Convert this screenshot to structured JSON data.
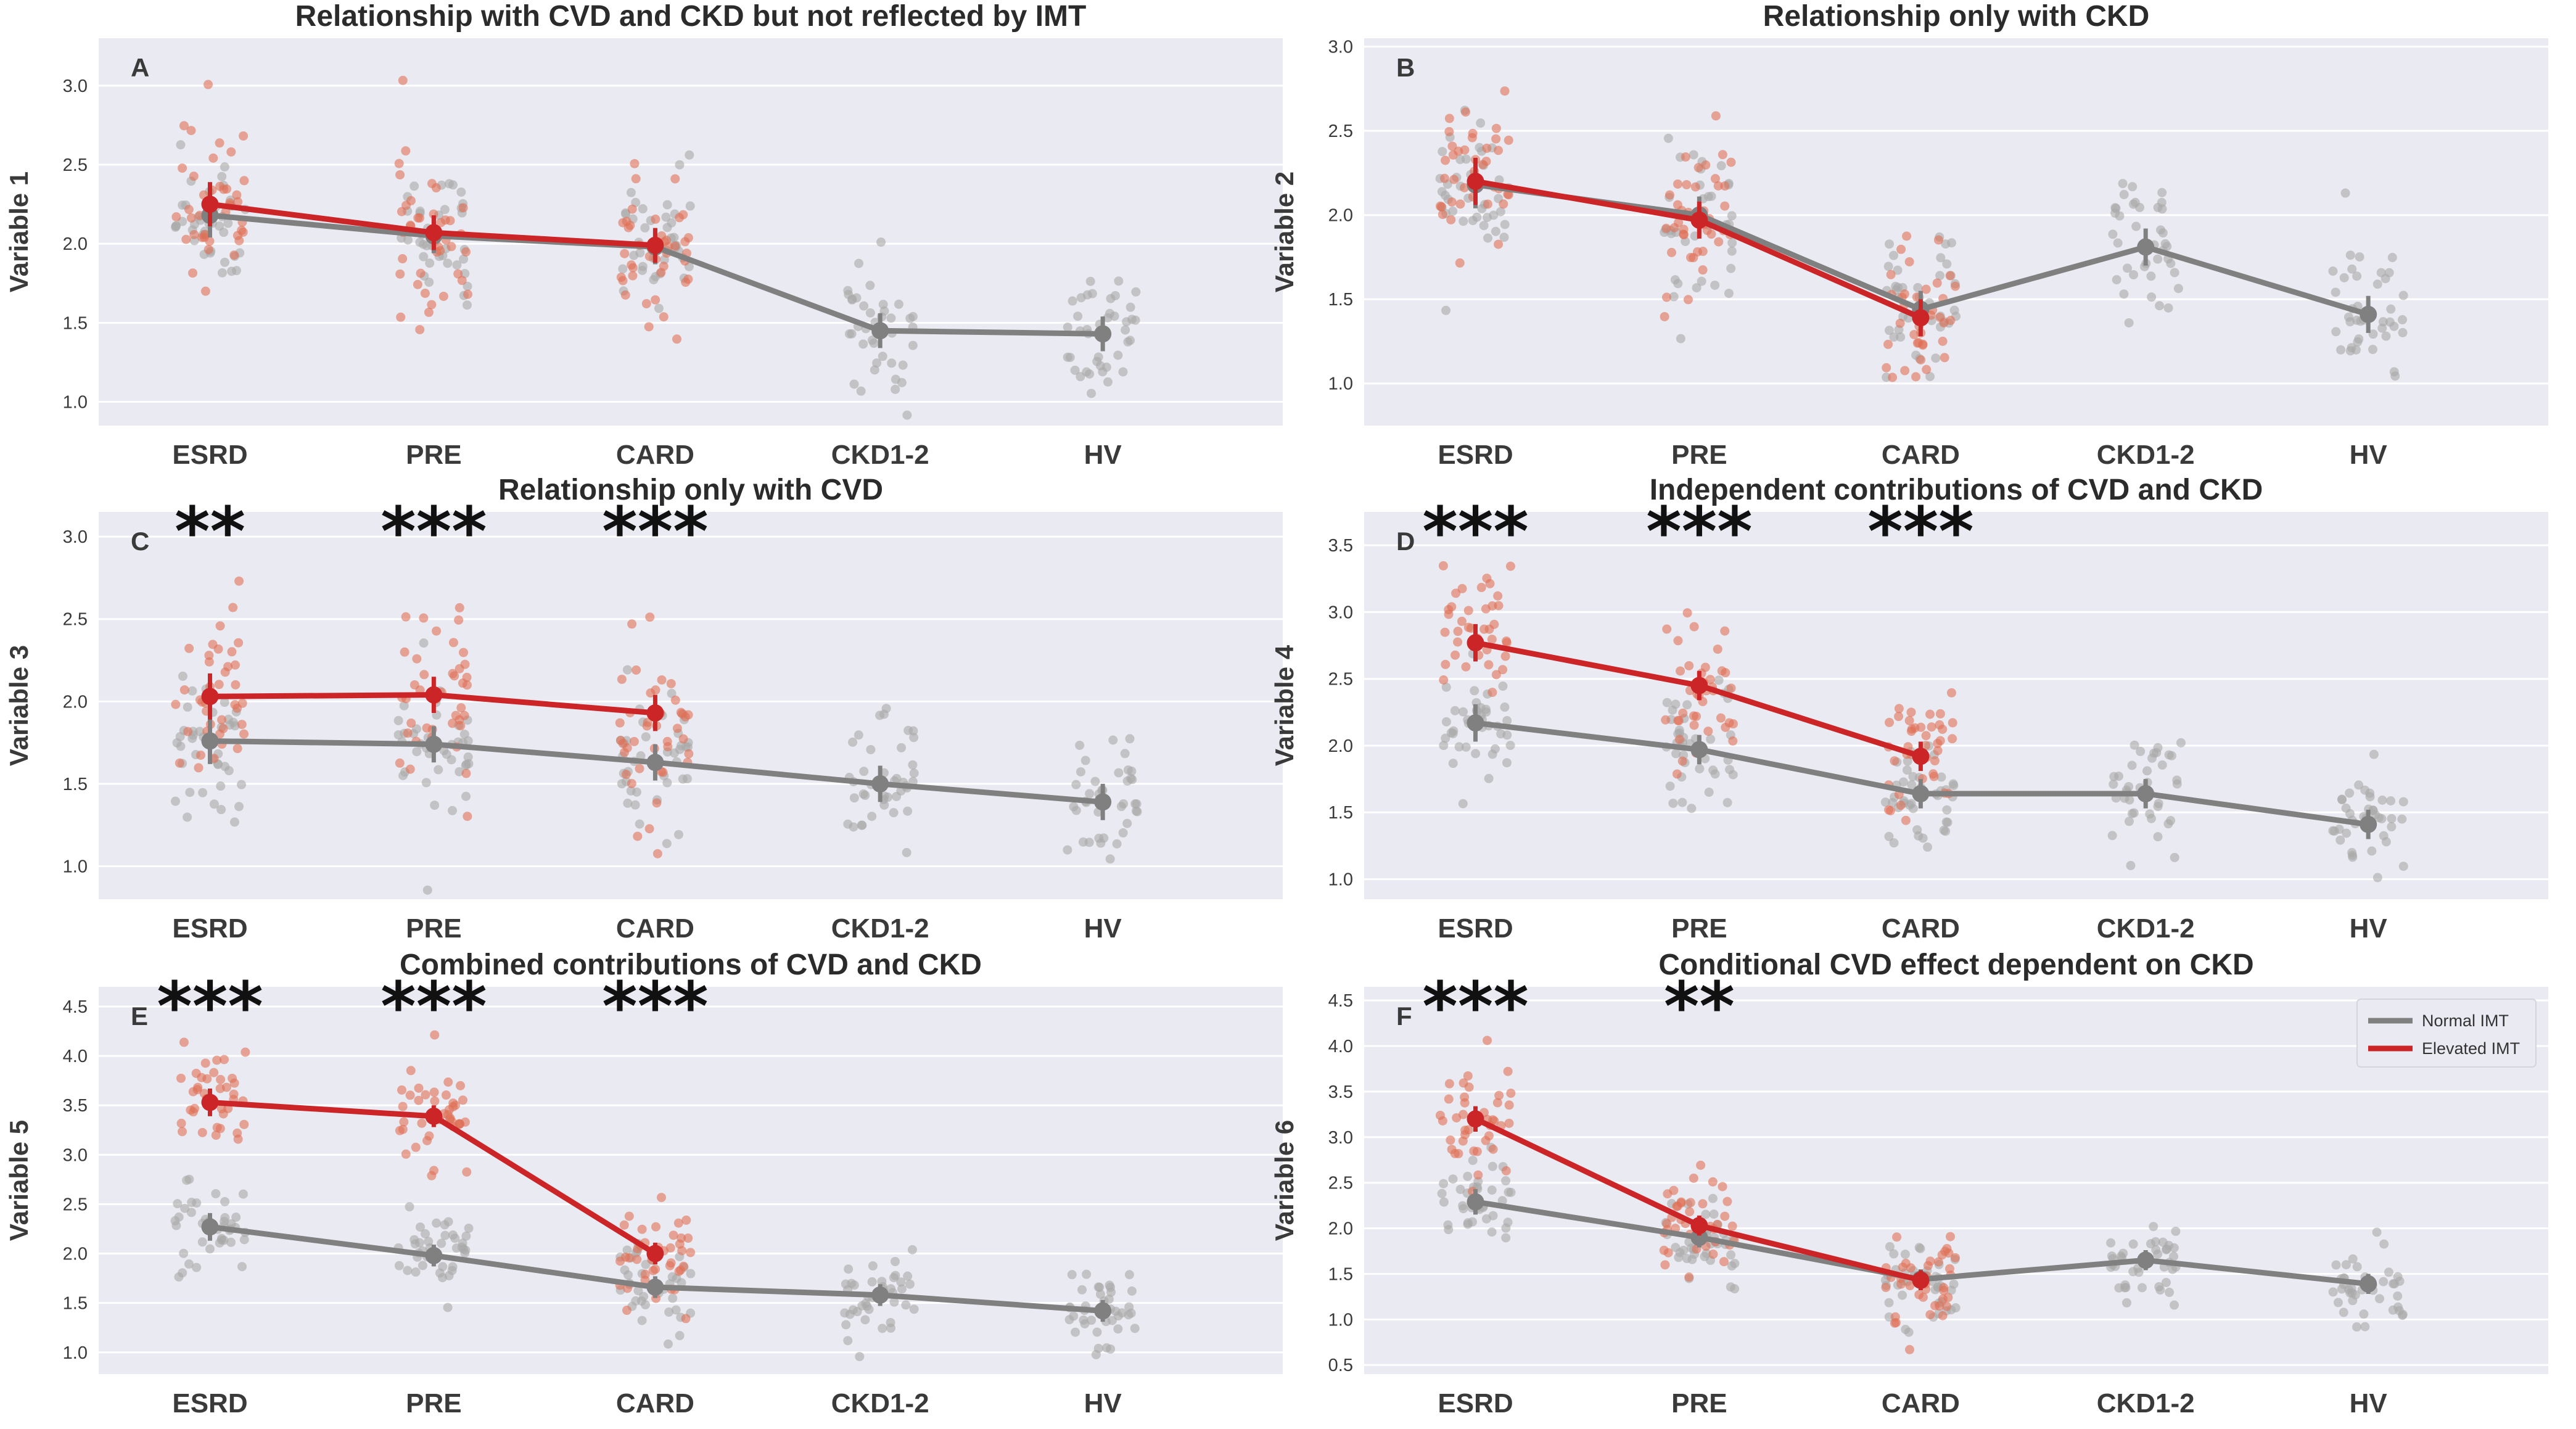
{
  "colors": {
    "normal": "#808080",
    "elevated": "#cc2528",
    "elevated_pts": "#e07055",
    "normal_pts": "#a8a8a8",
    "bg": "#eaeaf2"
  },
  "legend": {
    "normal": "Normal IMT",
    "elevated": "Elevated IMT"
  },
  "chart_data": [
    {
      "type": "line",
      "panel": "A",
      "title": "Relationship with CVD and CKD but not reflected by IMT",
      "ylabel": "Variable 1",
      "categories": [
        "ESRD",
        "PRE",
        "CARD",
        "CKD1-2",
        "HV"
      ],
      "ylim": [
        0.85,
        3.3
      ],
      "yticks": [
        1.0,
        1.5,
        2.0,
        2.5,
        3.0
      ],
      "series": [
        {
          "name": "Normal IMT",
          "values": [
            2.18,
            2.05,
            1.98,
            1.45,
            1.43
          ]
        },
        {
          "name": "Elevated IMT",
          "values": [
            2.25,
            2.07,
            1.99,
            null,
            null
          ]
        }
      ],
      "stars": [
        "",
        "",
        "",
        "",
        ""
      ]
    },
    {
      "type": "line",
      "panel": "B",
      "title": "Relationship only with CKD",
      "ylabel": "Variable 2",
      "categories": [
        "ESRD",
        "PRE",
        "CARD",
        "CKD1-2",
        "HV"
      ],
      "ylim": [
        0.75,
        3.05
      ],
      "yticks": [
        1.0,
        1.5,
        2.0,
        2.5,
        3.0
      ],
      "series": [
        {
          "name": "Normal IMT",
          "values": [
            2.18,
            2.0,
            1.44,
            1.81,
            1.41
          ]
        },
        {
          "name": "Elevated IMT",
          "values": [
            2.2,
            1.97,
            1.39,
            null,
            null
          ]
        }
      ],
      "stars": [
        "",
        "",
        "",
        "",
        ""
      ]
    },
    {
      "type": "line",
      "panel": "C",
      "title": "Relationship only with CVD",
      "ylabel": "Variable 3",
      "categories": [
        "ESRD",
        "PRE",
        "CARD",
        "CKD1-2",
        "HV"
      ],
      "ylim": [
        0.8,
        3.15
      ],
      "yticks": [
        1.0,
        1.5,
        2.0,
        2.5,
        3.0
      ],
      "series": [
        {
          "name": "Normal IMT",
          "values": [
            1.76,
            1.74,
            1.63,
            1.5,
            1.39
          ]
        },
        {
          "name": "Elevated IMT",
          "values": [
            2.03,
            2.04,
            1.93,
            null,
            null
          ]
        }
      ],
      "stars": [
        "**",
        "***",
        "***",
        "",
        ""
      ]
    },
    {
      "type": "line",
      "panel": "D",
      "title": "Independent contributions of CVD and CKD",
      "ylabel": "Variable 4",
      "categories": [
        "ESRD",
        "PRE",
        "CARD",
        "CKD1-2",
        "HV"
      ],
      "ylim": [
        0.85,
        3.75
      ],
      "yticks": [
        1.0,
        1.5,
        2.0,
        2.5,
        3.0,
        3.5
      ],
      "series": [
        {
          "name": "Normal IMT",
          "values": [
            2.17,
            1.97,
            1.64,
            1.64,
            1.41
          ]
        },
        {
          "name": "Elevated IMT",
          "values": [
            2.77,
            2.45,
            1.92,
            null,
            null
          ]
        }
      ],
      "stars": [
        "***",
        "***",
        "***",
        "",
        ""
      ]
    },
    {
      "type": "line",
      "panel": "E",
      "title": "Combined contributions of CVD and CKD",
      "ylabel": "Variable 5",
      "categories": [
        "ESRD",
        "PRE",
        "CARD",
        "CKD1-2",
        "HV"
      ],
      "ylim": [
        0.78,
        4.7
      ],
      "yticks": [
        1.0,
        1.5,
        2.0,
        2.5,
        3.0,
        3.5,
        4.0,
        4.5
      ],
      "series": [
        {
          "name": "Normal IMT",
          "values": [
            2.27,
            1.98,
            1.66,
            1.58,
            1.42
          ]
        },
        {
          "name": "Elevated IMT",
          "values": [
            3.53,
            3.39,
            2.0,
            null,
            null
          ]
        }
      ],
      "stars": [
        "***",
        "***",
        "***",
        "",
        ""
      ]
    },
    {
      "type": "line",
      "panel": "F",
      "title": "Conditional CVD effect dependent on CKD",
      "ylabel": "Variable 6",
      "categories": [
        "ESRD",
        "PRE",
        "CARD",
        "CKD1-2",
        "HV"
      ],
      "ylim": [
        0.4,
        4.65
      ],
      "yticks": [
        0.5,
        1.0,
        1.5,
        2.0,
        2.5,
        3.0,
        3.5,
        4.0,
        4.5
      ],
      "series": [
        {
          "name": "Normal IMT",
          "values": [
            2.29,
            1.9,
            1.44,
            1.65,
            1.39
          ]
        },
        {
          "name": "Elevated IMT",
          "values": [
            3.2,
            2.03,
            1.43,
            null,
            null
          ]
        }
      ],
      "stars": [
        "***",
        "**",
        "",
        "",
        ""
      ],
      "legend": true
    }
  ]
}
